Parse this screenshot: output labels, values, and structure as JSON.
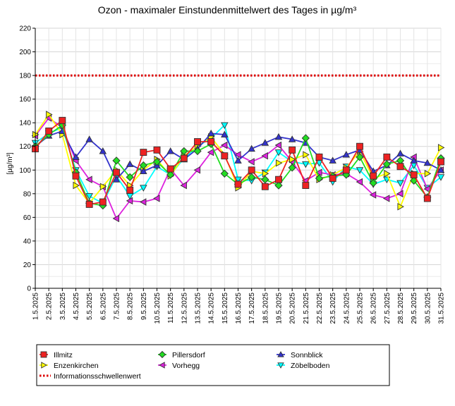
{
  "chart_data": {
    "type": "line",
    "title": "Ozon -  maximaler Einstundenmittelwert des Tages in µg/m³",
    "ylabel": "[µg/m³]",
    "xlabel": "",
    "ylim": [
      0,
      220
    ],
    "yticks": [
      0,
      20,
      40,
      60,
      80,
      100,
      120,
      140,
      160,
      180,
      200,
      220
    ],
    "grid": true,
    "legend_position": "bottom",
    "categories": [
      "1.5.2025",
      "2.5.2025",
      "3.5.2025",
      "4.5.2025",
      "5.5.2025",
      "6.5.2025",
      "7.5.2025",
      "8.5.2025",
      "9.5.2025",
      "10.5.2025",
      "11.5.2025",
      "12.5.2025",
      "13.5.2025",
      "14.5.2025",
      "15.5.2025",
      "16.5.2025",
      "17.5.2025",
      "18.5.2025",
      "19.5.2025",
      "20.5.2025",
      "21.5.2025",
      "22.5.2025",
      "23.5.2025",
      "24.5.2025",
      "25.5.2025",
      "26.5.2025",
      "27.5.2025",
      "28.5.2025",
      "29.5.2025",
      "30.5.2025",
      "31.5.2025"
    ],
    "series": [
      {
        "name": "Illmitz",
        "color": "#ee2222",
        "marker": "square",
        "values": [
          118,
          133,
          142,
          95,
          71,
          73,
          98,
          83,
          115,
          117,
          101,
          110,
          124,
          124,
          112,
          88,
          100,
          86,
          92,
          117,
          87,
          111,
          93,
          100,
          120,
          95,
          111,
          103,
          96,
          76,
          107
        ]
      },
      {
        "name": "Pillersdorf",
        "color": "#22dd22",
        "marker": "diamond",
        "values": [
          120,
          130,
          138,
          98,
          72,
          70,
          108,
          94,
          104,
          107,
          96,
          116,
          116,
          122,
          97,
          88,
          94,
          92,
          87,
          102,
          127,
          93,
          95,
          96,
          111,
          89,
          105,
          108,
          91,
          77,
          110
        ]
      },
      {
        "name": "Sonnblick",
        "color": "#3333cc",
        "marker": "triangle-up",
        "values": [
          120,
          129,
          133,
          111,
          126,
          116,
          92,
          105,
          99,
          104,
          116,
          109,
          118,
          131,
          130,
          108,
          118,
          123,
          128,
          126,
          123,
          111,
          108,
          113,
          117,
          99,
          104,
          114,
          108,
          106,
          100
        ]
      },
      {
        "name": "Enzenkirchen",
        "color": "#ffff00",
        "marker": "triangle-right",
        "values": [
          130,
          147,
          130,
          87,
          72,
          86,
          100,
          87,
          100,
          109,
          95,
          112,
          120,
          128,
          113,
          85,
          99,
          97,
          106,
          109,
          113,
          92,
          96,
          102,
          116,
          93,
          97,
          69,
          97,
          97,
          119
        ]
      },
      {
        "name": "Vorhegg",
        "color": "#dd22dd",
        "marker": "triangle-left",
        "values": [
          129,
          144,
          136,
          108,
          92,
          86,
          59,
          74,
          73,
          76,
          101,
          87,
          100,
          115,
          121,
          113,
          107,
          112,
          121,
          107,
          91,
          98,
          96,
          97,
          90,
          79,
          76,
          80,
          111,
          84,
          100
        ]
      },
      {
        "name": "Zöbelboden",
        "color": "#00ffff",
        "marker": "triangle-down",
        "values": [
          123,
          131,
          136,
          100,
          78,
          72,
          95,
          78,
          85,
          103,
          96,
          110,
          120,
          127,
          138,
          92,
          91,
          98,
          115,
          107,
          105,
          106,
          90,
          103,
          100,
          88,
          92,
          89,
          104,
          85,
          94
        ]
      }
    ],
    "threshold": {
      "name": "Informationsschwellenwert",
      "value": 180,
      "color": "#dd0000"
    }
  }
}
